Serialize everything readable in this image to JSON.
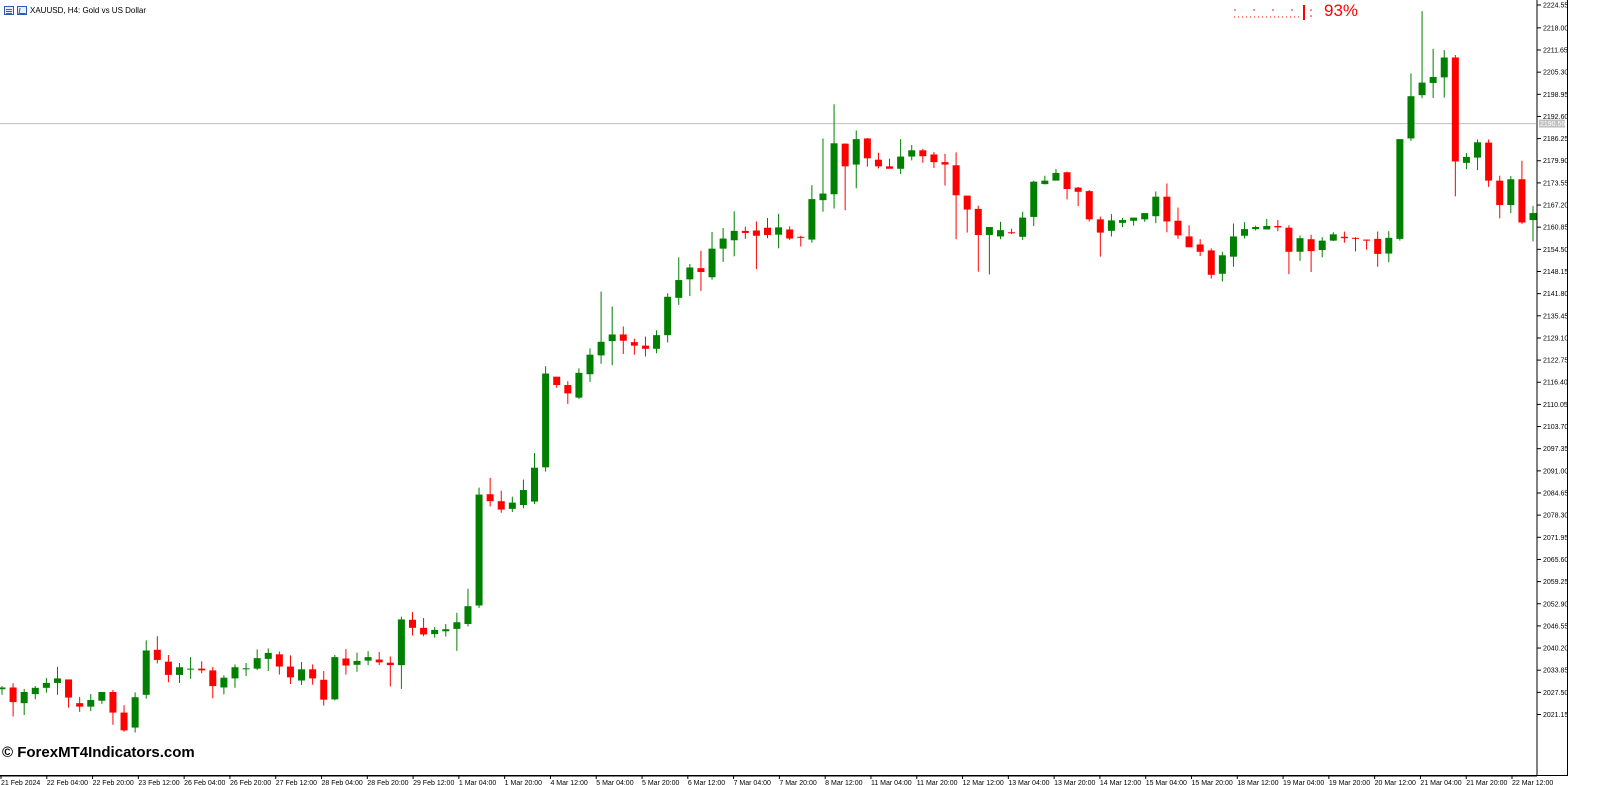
{
  "window": {
    "title": "XAUUSD, H4:  Gold vs US Dollar"
  },
  "indicator": {
    "value_text": "93%",
    "color": "#ff0000"
  },
  "watermark": "© ForexMT4Indicators.com",
  "colors": {
    "bull": "#008000",
    "bear": "#ff0000",
    "axis": "#000000",
    "hline": "#c0c0c0"
  },
  "icons": [
    "chart-list-icon",
    "chart-properties-icon"
  ],
  "chart_data": {
    "type": "candlestick",
    "symbol": "XAUUSD",
    "timeframe": "H4",
    "ylim": [
      2014.7,
      2224.55
    ],
    "y_ticks": [
      "2224.55",
      "2218.00",
      "2211.65",
      "2205.30",
      "2198.95",
      "2192.60",
      "2186.25",
      "2179.90",
      "2173.55",
      "2167.20",
      "2160.85",
      "2154.50",
      "2148.15",
      "2141.80",
      "2135.45",
      "2129.10",
      "2122.75",
      "2116.40",
      "2110.05",
      "2103.70",
      "2097.35",
      "2091.00",
      "2084.65",
      "2078.30",
      "2071.95",
      "2065.60",
      "2059.25",
      "2052.90",
      "2046.55",
      "2040.20",
      "2033.85",
      "2027.50",
      "2021.15"
    ],
    "current_price_label": "2190.56",
    "current_price": 2190.56,
    "x_labels": [
      "21 Feb 2024",
      "22 Feb 04:00",
      "22 Feb 20:00",
      "23 Feb 12:00",
      "26 Feb 04:00",
      "26 Feb 20:00",
      "27 Feb 12:00",
      "28 Feb 04:00",
      "28 Feb 20:00",
      "29 Feb 12:00",
      "1 Mar 04:00",
      "1 Mar 20:00",
      "4 Mar 12:00",
      "5 Mar 04:00",
      "5 Mar 20:00",
      "6 Mar 12:00",
      "7 Mar 04:00",
      "7 Mar 20:00",
      "8 Mar 12:00",
      "11 Mar 04:00",
      "11 Mar 20:00",
      "12 Mar 12:00",
      "13 Mar 04:00",
      "13 Mar 20:00",
      "14 Mar 12:00",
      "15 Mar 04:00",
      "15 Mar 20:00",
      "18 Mar 12:00",
      "19 Mar 04:00",
      "19 Mar 20:00",
      "20 Mar 12:00",
      "21 Mar 04:00",
      "21 Mar 20:00",
      "22 Mar 12:00"
    ],
    "ohlc": [
      [
        2028.4,
        2029.3,
        2026.8,
        2028.9
      ],
      [
        2028.9,
        2030.1,
        2020.6,
        2024.7
      ],
      [
        2024.4,
        2028.5,
        2021.0,
        2027.6
      ],
      [
        2027.0,
        2029.3,
        2025.5,
        2028.8
      ],
      [
        2028.8,
        2031.6,
        2027.4,
        2030.2
      ],
      [
        2030.2,
        2034.8,
        2026.8,
        2031.5
      ],
      [
        2031.2,
        2031.2,
        2023.1,
        2026.0
      ],
      [
        2024.4,
        2026.2,
        2021.9,
        2023.4
      ],
      [
        2023.4,
        2027.0,
        2022.1,
        2025.3
      ],
      [
        2025.1,
        2027.6,
        2024.2,
        2027.6
      ],
      [
        2027.6,
        2028.2,
        2018.2,
        2021.7
      ],
      [
        2021.7,
        2023.8,
        2016.2,
        2016.6
      ],
      [
        2017.4,
        2027.5,
        2016.0,
        2026.1
      ],
      [
        2026.8,
        2042.4,
        2025.7,
        2039.5
      ],
      [
        2039.7,
        2043.6,
        2035.8,
        2036.8
      ],
      [
        2036.3,
        2038.2,
        2030.4,
        2032.5
      ],
      [
        2032.5,
        2035.9,
        2030.2,
        2034.7
      ],
      [
        2034.3,
        2037.6,
        2031.4,
        2034.3
      ],
      [
        2034.3,
        2036.4,
        2033.0,
        2033.8
      ],
      [
        2033.8,
        2034.8,
        2025.8,
        2029.3
      ],
      [
        2028.9,
        2032.4,
        2026.9,
        2031.7
      ],
      [
        2031.5,
        2035.5,
        2028.8,
        2034.7
      ],
      [
        2034.1,
        2035.9,
        2032.2,
        2034.4
      ],
      [
        2034.3,
        2039.8,
        2033.9,
        2037.3
      ],
      [
        2037.1,
        2040.1,
        2033.6,
        2038.8
      ],
      [
        2038.4,
        2039.2,
        2032.6,
        2034.9
      ],
      [
        2034.9,
        2038.1,
        2029.9,
        2031.8
      ],
      [
        2030.9,
        2036.2,
        2029.6,
        2034.1
      ],
      [
        2034.1,
        2035.5,
        2029.7,
        2031.5
      ],
      [
        2031.1,
        2033.6,
        2023.7,
        2025.4
      ],
      [
        2025.5,
        2038.2,
        2025.2,
        2037.6
      ],
      [
        2037.2,
        2039.9,
        2032.6,
        2035.2
      ],
      [
        2035.4,
        2038.9,
        2033.4,
        2036.5
      ],
      [
        2036.6,
        2039.3,
        2035.3,
        2037.6
      ],
      [
        2036.9,
        2039.1,
        2035.3,
        2036.1
      ],
      [
        2036.0,
        2037.8,
        2029.2,
        2035.3
      ],
      [
        2035.3,
        2049.2,
        2028.5,
        2048.4
      ],
      [
        2048.3,
        2050.5,
        2043.8,
        2046.0
      ],
      [
        2046.0,
        2048.8,
        2043.6,
        2044.1
      ],
      [
        2044.2,
        2046.2,
        2043.2,
        2045.4
      ],
      [
        2045.0,
        2047.1,
        2043.5,
        2045.6
      ],
      [
        2045.7,
        2050.3,
        2039.4,
        2047.6
      ],
      [
        2047.1,
        2057.2,
        2046.4,
        2052.2
      ],
      [
        2052.4,
        2086.2,
        2051.7,
        2084.2
      ],
      [
        2084.3,
        2089.0,
        2080.8,
        2082.3
      ],
      [
        2082.3,
        2085.3,
        2079.0,
        2079.9
      ],
      [
        2080.1,
        2083.6,
        2079.2,
        2081.9
      ],
      [
        2081.2,
        2088.5,
        2080.3,
        2085.5
      ],
      [
        2082.2,
        2096.1,
        2081.5,
        2091.9
      ],
      [
        2092.0,
        2121.0,
        2090.8,
        2118.9
      ],
      [
        2118.0,
        2117.6,
        2114.8,
        2115.6
      ],
      [
        2115.6,
        2116.7,
        2110.2,
        2113.2
      ],
      [
        2112.0,
        2120.4,
        2111.6,
        2119.1
      ],
      [
        2118.7,
        2126.1,
        2116.5,
        2124.3
      ],
      [
        2124.1,
        2142.4,
        2121.7,
        2128.0
      ],
      [
        2128.2,
        2138.1,
        2121.3,
        2130.1
      ],
      [
        2130.1,
        2132.4,
        2124.5,
        2128.3
      ],
      [
        2127.9,
        2128.9,
        2124.3,
        2126.9
      ],
      [
        2126.9,
        2129.5,
        2123.8,
        2126.0
      ],
      [
        2126.0,
        2131.3,
        2124.7,
        2129.9
      ],
      [
        2129.9,
        2141.9,
        2127.8,
        2140.9
      ],
      [
        2140.6,
        2152.2,
        2138.6,
        2145.7
      ],
      [
        2145.9,
        2150.3,
        2141.1,
        2149.3
      ],
      [
        2149.1,
        2154.1,
        2142.6,
        2148.0
      ],
      [
        2146.5,
        2159.5,
        2145.8,
        2154.7
      ],
      [
        2154.7,
        2160.6,
        2150.9,
        2157.6
      ],
      [
        2157.1,
        2165.4,
        2152.5,
        2159.8
      ],
      [
        2159.8,
        2161.0,
        2157.5,
        2159.2
      ],
      [
        2159.9,
        2162.5,
        2148.8,
        2158.4
      ],
      [
        2160.7,
        2163.5,
        2157.7,
        2158.6
      ],
      [
        2158.7,
        2164.7,
        2154.8,
        2160.8
      ],
      [
        2160.2,
        2161.1,
        2157.2,
        2157.6
      ],
      [
        2158.1,
        2158.4,
        2155.3,
        2157.8
      ],
      [
        2157.3,
        2172.9,
        2156.4,
        2168.9
      ],
      [
        2168.6,
        2186.3,
        2165.3,
        2170.5
      ],
      [
        2170.3,
        2196.1,
        2166.2,
        2184.9
      ],
      [
        2184.8,
        2184.9,
        2165.7,
        2178.3
      ],
      [
        2178.8,
        2188.6,
        2172.0,
        2186.1
      ],
      [
        2186.3,
        2186.4,
        2178.2,
        2180.6
      ],
      [
        2180.2,
        2182.2,
        2177.7,
        2178.3
      ],
      [
        2178.3,
        2180.5,
        2177.9,
        2177.6
      ],
      [
        2177.6,
        2186.1,
        2176.1,
        2181.1
      ],
      [
        2181.1,
        2184.4,
        2180.0,
        2182.9
      ],
      [
        2182.9,
        2183.3,
        2179.3,
        2181.2
      ],
      [
        2181.7,
        2182.4,
        2177.8,
        2179.5
      ],
      [
        2179.5,
        2181.9,
        2172.8,
        2178.8
      ],
      [
        2178.6,
        2182.3,
        2157.4,
        2170.0
      ],
      [
        2169.9,
        2169.9,
        2159.3,
        2165.9
      ],
      [
        2166.1,
        2167.0,
        2148.1,
        2158.6
      ],
      [
        2158.6,
        2160.8,
        2147.3,
        2160.9
      ],
      [
        2158.2,
        2162.4,
        2157.4,
        2160.0
      ],
      [
        2159.4,
        2160.4,
        2158.9,
        2159.1
      ],
      [
        2158.1,
        2165.3,
        2157.2,
        2163.6
      ],
      [
        2163.8,
        2174.2,
        2161.2,
        2173.9
      ],
      [
        2173.2,
        2175.6,
        2173.1,
        2174.2
      ],
      [
        2174.2,
        2177.5,
        2174.5,
        2176.4
      ],
      [
        2176.6,
        2176.8,
        2168.8,
        2171.8
      ],
      [
        2172.2,
        2172.4,
        2166.9,
        2171.0
      ],
      [
        2171.2,
        2171.5,
        2162.5,
        2163.1
      ],
      [
        2163.1,
        2163.9,
        2152.4,
        2159.3
      ],
      [
        2159.8,
        2164.6,
        2158.2,
        2162.8
      ],
      [
        2162.1,
        2163.5,
        2160.9,
        2162.9
      ],
      [
        2162.7,
        2163.3,
        2161.3,
        2163.6
      ],
      [
        2163.1,
        2164.8,
        2162.4,
        2164.9
      ],
      [
        2164.0,
        2171.1,
        2162.0,
        2169.6
      ],
      [
        2169.6,
        2173.4,
        2159.4,
        2162.5
      ],
      [
        2162.7,
        2166.5,
        2157.5,
        2158.5
      ],
      [
        2158.2,
        2161.4,
        2155.1,
        2155.1
      ],
      [
        2155.9,
        2157.4,
        2152.6,
        2153.8
      ],
      [
        2154.2,
        2154.8,
        2146.1,
        2147.2
      ],
      [
        2147.5,
        2153.8,
        2145.3,
        2152.8
      ],
      [
        2152.4,
        2161.9,
        2149.5,
        2158.2
      ],
      [
        2158.4,
        2162.3,
        2157.6,
        2160.3
      ],
      [
        2160.3,
        2161.3,
        2159.9,
        2160.9
      ],
      [
        2160.2,
        2163.2,
        2160.2,
        2161.2
      ],
      [
        2161.2,
        2162.9,
        2159.7,
        2160.8
      ],
      [
        2160.7,
        2161.4,
        2147.4,
        2153.8
      ],
      [
        2153.8,
        2158.5,
        2151.2,
        2157.7
      ],
      [
        2157.4,
        2158.7,
        2148.0,
        2154.0
      ],
      [
        2154.3,
        2158.0,
        2152.2,
        2157.0
      ],
      [
        2157.0,
        2159.4,
        2156.9,
        2158.8
      ],
      [
        2158.1,
        2159.6,
        2156.4,
        2157.7
      ],
      [
        2157.8,
        2158.0,
        2153.9,
        2157.6
      ],
      [
        2157.3,
        2157.3,
        2154.4,
        2157.0
      ],
      [
        2157.5,
        2159.6,
        2149.5,
        2153.2
      ],
      [
        2153.3,
        2159.7,
        2150.8,
        2157.8
      ],
      [
        2157.5,
        2185.1,
        2157.0,
        2186.1
      ],
      [
        2186.3,
        2204.9,
        2185.6,
        2198.4
      ],
      [
        2198.7,
        2222.8,
        2197.8,
        2202.3
      ],
      [
        2202.2,
        2212.0,
        2197.9,
        2203.9
      ],
      [
        2203.8,
        2211.6,
        2198.0,
        2209.5
      ],
      [
        2209.5,
        2210.2,
        2169.7,
        2179.7
      ],
      [
        2179.3,
        2182.1,
        2177.5,
        2181.0
      ],
      [
        2180.8,
        2186.0,
        2177.2,
        2185.2
      ],
      [
        2185.1,
        2186.0,
        2172.4,
        2174.2
      ],
      [
        2174.2,
        2175.6,
        2163.4,
        2167.2
      ],
      [
        2167.2,
        2175.5,
        2164.9,
        2174.6
      ],
      [
        2174.6,
        2179.9,
        2161.8,
        2162.2
      ],
      [
        2162.9,
        2166.9,
        2156.8,
        2164.9
      ]
    ]
  }
}
